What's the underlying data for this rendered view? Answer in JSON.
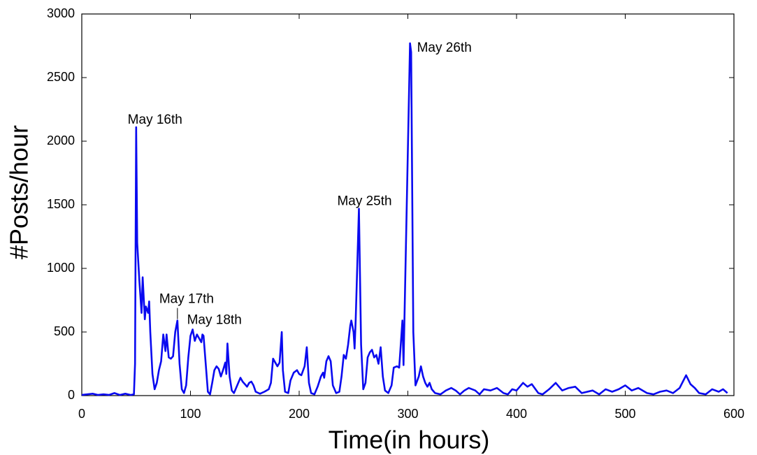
{
  "chart_data": {
    "type": "line",
    "x_label": "Time(in hours)",
    "y_label": "#Posts/hour",
    "color": "#0a0af0",
    "xlim": [
      0,
      600
    ],
    "ylim": [
      0,
      3000
    ],
    "xticks": [
      0,
      100,
      200,
      300,
      400,
      500,
      600
    ],
    "yticks": [
      0,
      500,
      1000,
      1500,
      2000,
      2500,
      3000
    ],
    "grid": false,
    "x": [
      0,
      5,
      10,
      15,
      20,
      25,
      30,
      35,
      40,
      45,
      48,
      49,
      50,
      51,
      53,
      55,
      56,
      58,
      59,
      61,
      62,
      63,
      65,
      67,
      69,
      71,
      73,
      75,
      77,
      78,
      80,
      82,
      84,
      86,
      88,
      90,
      92,
      94,
      96,
      98,
      100,
      102,
      104,
      106,
      108,
      110,
      111,
      112,
      114,
      116,
      118,
      120,
      122,
      124,
      126,
      128,
      130,
      132,
      133,
      134,
      136,
      138,
      140,
      142,
      144,
      146,
      148,
      150,
      152,
      154,
      156,
      158,
      160,
      164,
      168,
      172,
      174,
      176,
      178,
      180,
      182,
      184,
      185,
      187,
      190,
      192,
      195,
      198,
      200,
      202,
      205,
      207,
      209,
      211,
      214,
      217,
      220,
      222,
      223,
      225,
      227,
      229,
      231,
      234,
      237,
      239,
      241,
      243,
      245,
      247,
      248,
      250,
      251,
      252,
      255,
      257,
      259,
      261,
      263,
      265,
      267,
      269,
      271,
      273,
      275,
      277,
      279,
      282,
      285,
      287,
      290,
      292,
      295,
      296,
      302,
      303,
      305,
      307,
      310,
      312,
      314,
      316,
      318,
      320,
      322,
      325,
      330,
      335,
      340,
      344,
      348,
      352,
      356,
      362,
      366,
      370,
      376,
      382,
      388,
      392,
      396,
      400,
      406,
      410,
      414,
      420,
      424,
      430,
      436,
      442,
      448,
      454,
      460,
      470,
      476,
      482,
      488,
      494,
      500,
      506,
      512,
      520,
      526,
      532,
      538,
      544,
      550,
      556,
      560,
      564,
      568,
      574,
      580,
      586,
      590,
      594
    ],
    "values": [
      5,
      10,
      15,
      5,
      10,
      5,
      20,
      5,
      15,
      5,
      10,
      250,
      2110,
      1200,
      900,
      650,
      930,
      600,
      700,
      650,
      740,
      500,
      170,
      50,
      100,
      200,
      270,
      480,
      350,
      480,
      300,
      290,
      310,
      500,
      590,
      250,
      50,
      20,
      80,
      300,
      470,
      520,
      430,
      480,
      450,
      420,
      480,
      470,
      250,
      30,
      10,
      100,
      200,
      230,
      210,
      150,
      200,
      260,
      170,
      410,
      150,
      40,
      20,
      60,
      100,
      140,
      110,
      90,
      70,
      100,
      110,
      80,
      30,
      15,
      30,
      50,
      100,
      290,
      260,
      230,
      260,
      500,
      200,
      30,
      20,
      120,
      180,
      200,
      170,
      160,
      230,
      380,
      100,
      20,
      10,
      70,
      150,
      180,
      140,
      270,
      310,
      270,
      80,
      20,
      30,
      150,
      320,
      290,
      400,
      550,
      590,
      500,
      370,
      600,
      1470,
      400,
      50,
      100,
      300,
      340,
      360,
      300,
      320,
      250,
      380,
      150,
      40,
      20,
      80,
      220,
      230,
      220,
      590,
      240,
      2770,
      2700,
      500,
      80,
      150,
      230,
      150,
      100,
      70,
      100,
      50,
      20,
      10,
      40,
      60,
      40,
      10,
      40,
      60,
      40,
      10,
      50,
      40,
      60,
      20,
      10,
      50,
      40,
      100,
      70,
      90,
      20,
      10,
      50,
      100,
      40,
      60,
      70,
      20,
      40,
      10,
      50,
      30,
      50,
      80,
      40,
      60,
      20,
      10,
      30,
      40,
      20,
      60,
      160,
      90,
      60,
      20,
      10,
      50,
      30,
      50,
      20
    ],
    "annotations": [
      {
        "text": "May 16th",
        "x": 50,
        "y": 2110
      },
      {
        "text": "May 17th",
        "x": 88,
        "y": 590
      },
      {
        "text": "May 18th",
        "x": 102,
        "y": 520
      },
      {
        "text": "May 25th",
        "x": 255,
        "y": 1470
      },
      {
        "text": "May 26th",
        "x": 302,
        "y": 2770
      }
    ]
  }
}
